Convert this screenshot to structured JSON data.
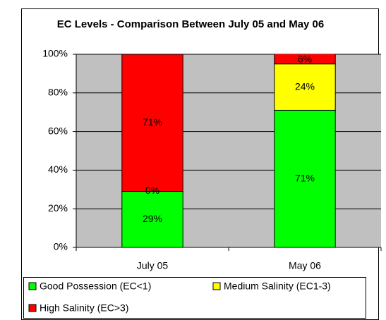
{
  "chart_data": {
    "type": "stacked-bar",
    "title": "EC Levels - Comparison Between July 05 and May 06",
    "categories": [
      "July 05",
      "May 06"
    ],
    "series": [
      {
        "name": "Good Possession (EC<1)",
        "color": "#00ff00",
        "values": [
          29,
          71
        ],
        "value_labels": [
          "29%",
          "71%"
        ]
      },
      {
        "name": "Medium Salinity (EC1-3)",
        "color": "#ffff00",
        "values": [
          0,
          24
        ],
        "value_labels": [
          "0%",
          "24%"
        ]
      },
      {
        "name": "High Salinity (EC>3)",
        "color": "#ff0000",
        "values": [
          71,
          6
        ],
        "value_labels": [
          "71%",
          "6%"
        ]
      }
    ],
    "ylim": [
      0,
      100
    ],
    "yticks": [
      {
        "value": 0,
        "label": "0%"
      },
      {
        "value": 20,
        "label": "20%"
      },
      {
        "value": 40,
        "label": "40%"
      },
      {
        "value": 60,
        "label": "60%"
      },
      {
        "value": 80,
        "label": "80%"
      },
      {
        "value": 100,
        "label": "100%"
      }
    ],
    "grid": true,
    "legend": "bottom",
    "plot_background": "#c0c0c0"
  }
}
